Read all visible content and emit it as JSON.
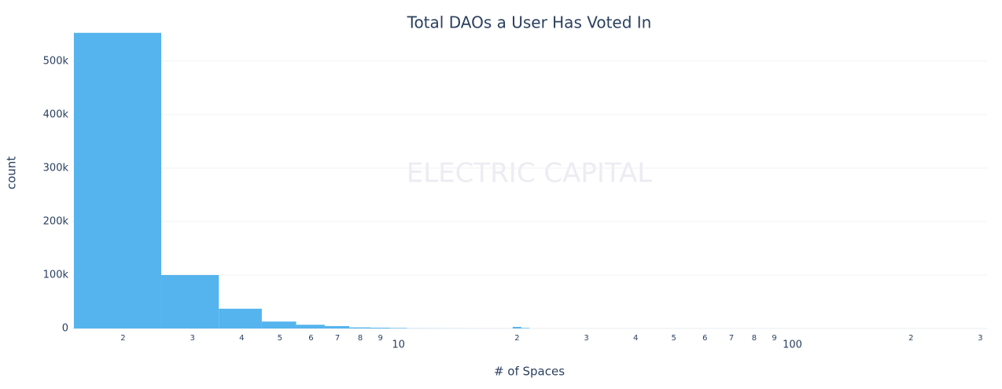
{
  "chart_data": {
    "type": "histogram",
    "title": "Total DAOs a User Has Voted In",
    "x_label": "# of Spaces",
    "y_label": "count",
    "watermark": "ELECTRIC CAPITAL",
    "bins": [
      1.5,
      2.5,
      3.5,
      4.5,
      5.5,
      6.5,
      7.5,
      8.5,
      9.5,
      10.5,
      11.5,
      12.5,
      13.5,
      14.5,
      15.5,
      16.5,
      17.5,
      18.5,
      19.5,
      20.5,
      21.5
    ],
    "counts": [
      553000,
      100000,
      37000,
      13000,
      7000,
      4500,
      2000,
      1500,
      1000,
      300,
      250,
      200,
      150,
      120,
      100,
      80,
      70,
      60,
      3000,
      1000
    ],
    "color": "#55b4ed",
    "xscale": "log",
    "xlim": [
      1.48,
      312
    ],
    "ylim": [
      0,
      585000
    ],
    "xticks": [
      2,
      3,
      4,
      5,
      6,
      7,
      8,
      9,
      10,
      {
        "value": 20,
        "label": "2"
      },
      {
        "value": 30,
        "label": "3"
      },
      {
        "value": 40,
        "label": "4"
      },
      {
        "value": 50,
        "label": "5"
      },
      {
        "value": 60,
        "label": "6"
      },
      {
        "value": 70,
        "label": "7"
      },
      {
        "value": 80,
        "label": "8"
      },
      {
        "value": 90,
        "label": "9"
      },
      100,
      {
        "value": 200,
        "label": "2"
      },
      {
        "value": 300,
        "label": "3"
      }
    ],
    "yticks": [
      0,
      {
        "value": 100000,
        "label": "100k"
      },
      {
        "value": 200000,
        "label": "200k"
      },
      {
        "value": 300000,
        "label": "300k"
      },
      {
        "value": 400000,
        "label": "400k"
      },
      {
        "value": 500000,
        "label": "500k"
      }
    ],
    "grid": true
  }
}
